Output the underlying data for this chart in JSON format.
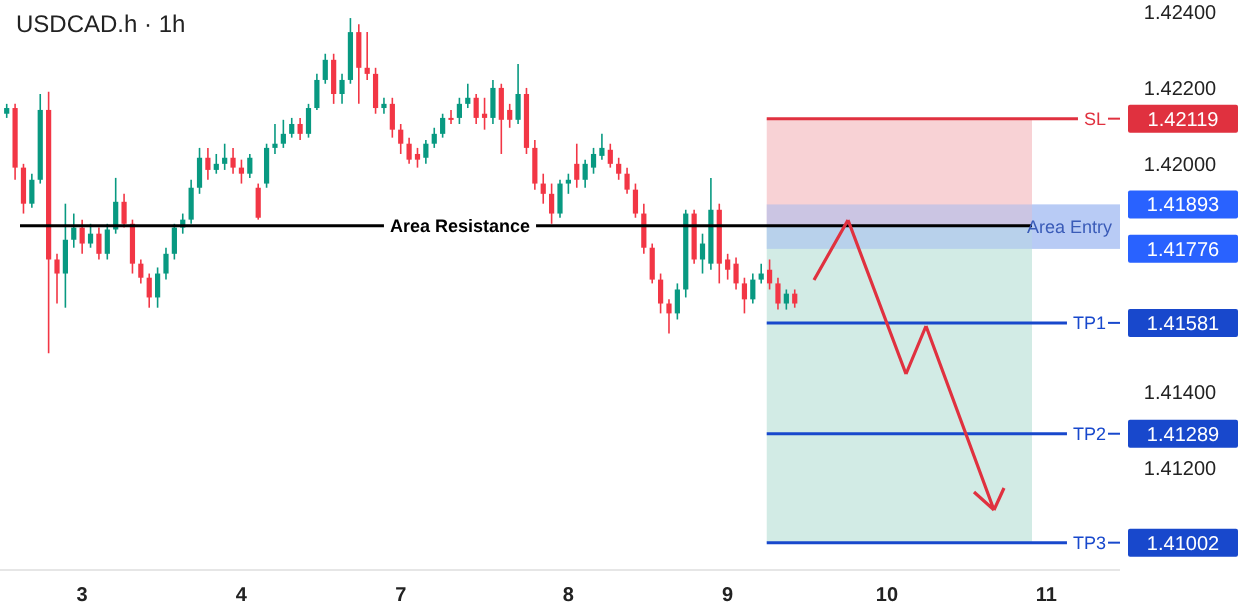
{
  "chart_data": {
    "type": "candlestick",
    "title": "USDCAD.h · 1h",
    "categories": [
      null,
      null,
      null,
      null,
      null,
      null,
      null,
      null,
      null,
      "3",
      null,
      null,
      null,
      null,
      null,
      null,
      null,
      null,
      null,
      null,
      null,
      null,
      null,
      null,
      null,
      null,
      null,
      null,
      "4",
      null,
      null,
      null,
      null,
      null,
      null,
      null,
      null,
      null,
      null,
      null,
      null,
      null,
      null,
      null,
      null,
      null,
      null,
      "7",
      null,
      null,
      null,
      null,
      null,
      null,
      null,
      null,
      null,
      null,
      null,
      null,
      null,
      null,
      null,
      null,
      null,
      null,
      null,
      "8",
      null,
      null,
      null,
      null,
      null,
      null,
      null,
      null,
      null,
      null,
      null,
      null,
      null,
      null,
      null,
      null,
      null,
      null,
      "9",
      null,
      null,
      null,
      null,
      null,
      null,
      null,
      null,
      null,
      null,
      null,
      null,
      null,
      null,
      null,
      null,
      null,
      null,
      "10",
      null,
      null,
      null,
      null,
      null,
      null,
      null,
      null,
      null,
      null,
      null,
      null,
      null,
      null,
      null,
      null,
      null,
      null,
      "11",
      null,
      null,
      null,
      null,
      null,
      null,
      null,
      null
    ],
    "ohlc": [
      [
        1.42132,
        1.42158,
        1.42121,
        1.42147
      ],
      [
        1.42147,
        1.42158,
        1.41958,
        1.4199
      ],
      [
        1.4199,
        1.42,
        1.41869,
        1.41895
      ],
      [
        1.41895,
        1.41974,
        1.41884,
        1.41958
      ],
      [
        1.41958,
        1.42184,
        1.41948,
        1.42142
      ],
      [
        1.42142,
        1.4219,
        1.41501,
        1.41748
      ],
      [
        1.41748,
        1.41763,
        1.41632,
        1.41711
      ],
      [
        1.41711,
        1.41895,
        1.41621,
        1.418
      ],
      [
        1.418,
        1.41869,
        1.41779,
        1.41832
      ],
      [
        1.41832,
        1.41853,
        1.41763,
        1.4179
      ],
      [
        1.4179,
        1.41842,
        1.41779,
        1.41816
      ],
      [
        1.41816,
        1.41832,
        1.41748,
        1.41763
      ],
      [
        1.41763,
        1.41842,
        1.41748,
        1.41827
      ],
      [
        1.41827,
        1.41963,
        1.41816,
        1.419
      ],
      [
        1.419,
        1.41921,
        1.41832,
        1.41842
      ],
      [
        1.41842,
        1.41853,
        1.41711,
        1.41737
      ],
      [
        1.41737,
        1.41748,
        1.41685,
        1.417
      ],
      [
        1.417,
        1.41711,
        1.41621,
        1.41648
      ],
      [
        1.41648,
        1.41727,
        1.41621,
        1.41711
      ],
      [
        1.41711,
        1.41779,
        1.41695,
        1.41763
      ],
      [
        1.41763,
        1.41842,
        1.41748,
        1.41832
      ],
      [
        1.41832,
        1.41869,
        1.41816,
        1.41853
      ],
      [
        1.41853,
        1.41958,
        1.41842,
        1.41937
      ],
      [
        1.41937,
        1.42042,
        1.41921,
        1.42016
      ],
      [
        1.42016,
        1.42042,
        1.41958,
        1.41984
      ],
      [
        1.41984,
        1.42026,
        1.41974,
        1.42
      ],
      [
        1.42,
        1.42053,
        1.41984,
        1.42016
      ],
      [
        1.42016,
        1.42042,
        1.41974,
        1.4199
      ],
      [
        1.4199,
        1.42011,
        1.41948,
        1.41974
      ],
      [
        1.41974,
        1.42026,
        1.41963,
        1.42016
      ],
      [
        1.41937,
        1.41948,
        1.41853,
        1.41858
      ],
      [
        1.41948,
        1.42053,
        1.41937,
        1.42042
      ],
      [
        1.42042,
        1.42105,
        1.42026,
        1.42053
      ],
      [
        1.42053,
        1.42116,
        1.42042,
        1.42079
      ],
      [
        1.42079,
        1.42121,
        1.42069,
        1.42105
      ],
      [
        1.42105,
        1.42121,
        1.42063,
        1.42079
      ],
      [
        1.42079,
        1.42158,
        1.42069,
        1.42147
      ],
      [
        1.42147,
        1.42237,
        1.42142,
        1.42221
      ],
      [
        1.42221,
        1.4229,
        1.42211,
        1.42274
      ],
      [
        1.42274,
        1.4229,
        1.42158,
        1.42184
      ],
      [
        1.42184,
        1.42237,
        1.42158,
        1.42221
      ],
      [
        1.42221,
        1.42384,
        1.42211,
        1.42347
      ],
      [
        1.42347,
        1.42368,
        1.42158,
        1.42253
      ],
      [
        1.42253,
        1.42347,
        1.42221,
        1.42237
      ],
      [
        1.42237,
        1.42253,
        1.42132,
        1.42147
      ],
      [
        1.42147,
        1.42174,
        1.42132,
        1.42158
      ],
      [
        1.42158,
        1.42174,
        1.42069,
        1.4209
      ],
      [
        1.4209,
        1.42105,
        1.42026,
        1.42053
      ],
      [
        1.42053,
        1.42069,
        1.42,
        1.42011
      ],
      [
        1.42026,
        1.42042,
        1.4199,
        1.42011
      ],
      [
        1.42016,
        1.42063,
        1.42,
        1.42053
      ],
      [
        1.42053,
        1.42095,
        1.42042,
        1.42079
      ],
      [
        1.42079,
        1.42132,
        1.42069,
        1.42121
      ],
      [
        1.42121,
        1.42142,
        1.42105,
        1.42116
      ],
      [
        1.42121,
        1.42174,
        1.42105,
        1.42158
      ],
      [
        1.42158,
        1.42211,
        1.42147,
        1.42174
      ],
      [
        1.42174,
        1.42184,
        1.42105,
        1.42121
      ],
      [
        1.42132,
        1.42174,
        1.4209,
        1.42121
      ],
      [
        1.42121,
        1.42221,
        1.42105,
        1.422
      ],
      [
        1.422,
        1.42211,
        1.42026,
        1.42116
      ],
      [
        1.42142,
        1.42158,
        1.42095,
        1.42116
      ],
      [
        1.42116,
        1.42263,
        1.42105,
        1.42184
      ],
      [
        1.42184,
        1.422,
        1.42026,
        1.42042
      ],
      [
        1.42042,
        1.42063,
        1.41932,
        1.41948
      ],
      [
        1.41948,
        1.41974,
        1.41895,
        1.41921
      ],
      [
        1.41921,
        1.41948,
        1.41842,
        1.41869
      ],
      [
        1.41869,
        1.41958,
        1.41858,
        1.41948
      ],
      [
        1.41948,
        1.41974,
        1.41921,
        1.41958
      ],
      [
        1.42,
        1.42053,
        1.41937,
        1.41958
      ],
      [
        1.41958,
        1.42011,
        1.41937,
        1.42
      ],
      [
        1.4199,
        1.42042,
        1.41974,
        1.42026
      ],
      [
        1.42021,
        1.42079,
        1.42011,
        1.42042
      ],
      [
        1.42037,
        1.42053,
        1.4199,
        1.42
      ],
      [
        1.42,
        1.42016,
        1.41958,
        1.41974
      ],
      [
        1.41974,
        1.4199,
        1.41921,
        1.41932
      ],
      [
        1.41932,
        1.41948,
        1.41858,
        1.41869
      ],
      [
        1.41869,
        1.41895,
        1.41763,
        1.41779
      ],
      [
        1.41779,
        1.4179,
        1.41685,
        1.41695
      ],
      [
        1.41695,
        1.41711,
        1.41606,
        1.41632
      ],
      [
        1.41632,
        1.41643,
        1.41553,
        1.41606
      ],
      [
        1.41606,
        1.41685,
        1.4159,
        1.41669
      ],
      [
        1.41669,
        1.41879,
        1.41648,
        1.41869
      ],
      [
        1.41869,
        1.41879,
        1.41737,
        1.41748
      ],
      [
        1.41748,
        1.41816,
        1.41711,
        1.4179
      ],
      [
        1.41737,
        1.41963,
        1.41721,
        1.41879
      ],
      [
        1.41879,
        1.41895,
        1.41685,
        1.41737
      ],
      [
        1.41748,
        1.41763,
        1.41695,
        1.41721
      ],
      [
        1.41737,
        1.41753,
        1.41669,
        1.41685
      ],
      [
        1.41685,
        1.417,
        1.41606,
        1.41643
      ],
      [
        1.41643,
        1.41711,
        1.41632,
        1.41695
      ],
      [
        1.41695,
        1.41737,
        1.41685,
        1.41711
      ],
      [
        1.41721,
        1.41748,
        1.41669,
        1.41685
      ],
      [
        1.41685,
        1.417,
        1.41616,
        1.41632
      ],
      [
        1.41632,
        1.41669,
        1.41616,
        1.41658
      ],
      [
        1.41658,
        1.41669,
        1.41621,
        1.41632
      ],
      null,
      null,
      null,
      null,
      null,
      null,
      null,
      null,
      null,
      null,
      null,
      null,
      null,
      null,
      null,
      null,
      null,
      null,
      null,
      null,
      null,
      null,
      null,
      null,
      null,
      null,
      null,
      null,
      null,
      null,
      null,
      null,
      null,
      null,
      null,
      null,
      null,
      null
    ],
    "ylim": [
      1.4093,
      1.424
    ],
    "yticks": [
      {
        "value": 1.412,
        "label": "1.41200"
      },
      {
        "value": 1.414,
        "label": "1.41400"
      },
      {
        "value": 1.42,
        "label": "1.42000"
      },
      {
        "value": 1.422,
        "label": "1.42200"
      },
      {
        "value": 1.424,
        "label": "1.42400"
      }
    ],
    "ref_lines": [
      {
        "axis": "y",
        "value": 1.41837,
        "label": "Area Resistance",
        "color": "#000000"
      },
      {
        "axis": "y",
        "value": 1.42119,
        "label": "SL",
        "color": "#e0313f"
      },
      {
        "axis": "y",
        "value": 1.41581,
        "label": "TP1",
        "color": "#1848cc"
      },
      {
        "axis": "y",
        "value": 1.41289,
        "label": "TP2",
        "color": "#1848cc"
      },
      {
        "axis": "y",
        "value": 1.41002,
        "label": "TP3",
        "color": "#1848cc"
      }
    ],
    "bands": [
      {
        "axis": "y",
        "from": 1.41837,
        "to": 1.42119,
        "color": "#f8d2d5"
      },
      {
        "axis": "y",
        "from": 1.41002,
        "to": 1.41837,
        "color": "#d2ebe5"
      },
      {
        "axis": "y",
        "from": 1.41776,
        "to": 1.41893,
        "label": "Area Entry",
        "color": "#9db8f2"
      }
    ],
    "annotations": [
      "1.42119",
      "1.41893",
      "1.41776",
      "1.41581",
      "1.41289",
      "1.41002"
    ],
    "grid": false
  }
}
